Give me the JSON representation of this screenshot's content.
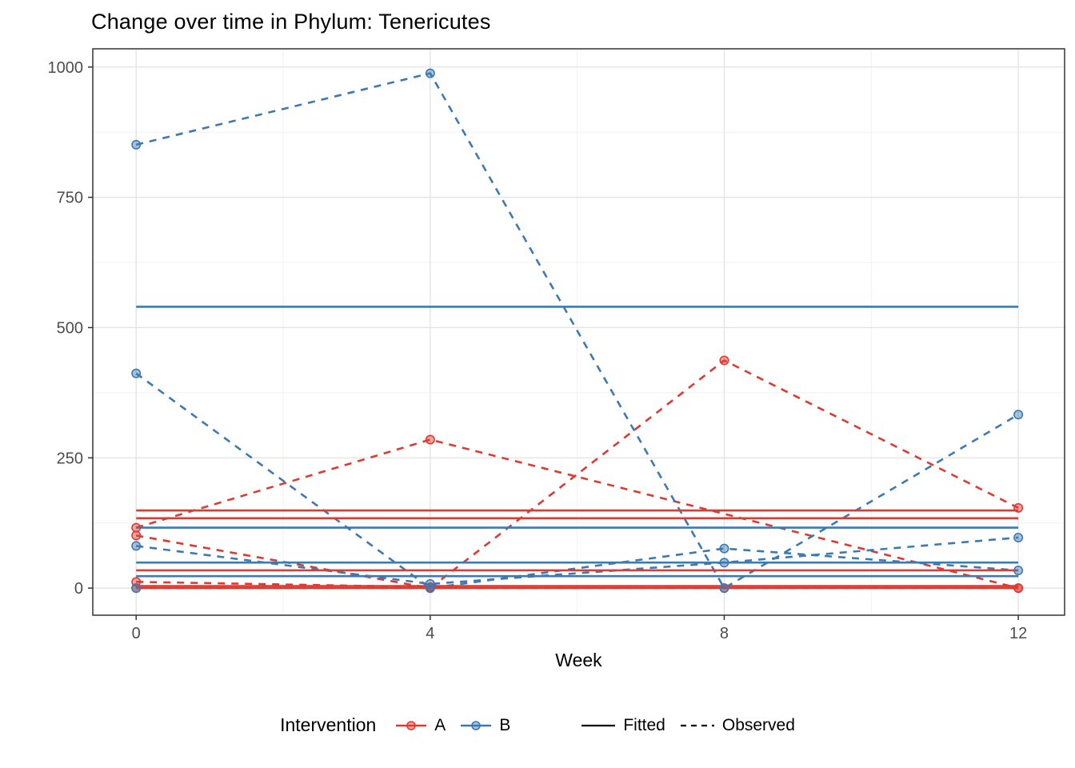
{
  "title": "Change over time in Phylum: Tenericutes",
  "chart_data": {
    "type": "line",
    "title": "Change over time in Phylum: Tenericutes",
    "xlabel": "Week",
    "ylabel": "",
    "x_ticks": [
      0,
      4,
      8,
      12
    ],
    "y_ticks": [
      0,
      250,
      500,
      750,
      1000
    ],
    "x_minor": [
      2,
      6,
      10
    ],
    "y_minor": [
      125,
      375,
      625,
      875
    ],
    "xlim": [
      -0.59,
      12.63
    ],
    "ylim": [
      -52,
      1035
    ],
    "grid": true,
    "legend_position": "bottom",
    "colors": {
      "A": "#DD3B32",
      "B": "#3D79B2",
      "linetype_key": "#000000"
    },
    "series": {
      "fitted": [
        {
          "group": "A",
          "value": 149
        },
        {
          "group": "A",
          "value": 134
        },
        {
          "group": "A",
          "value": 34
        },
        {
          "group": "A",
          "value": 4
        },
        {
          "group": "A",
          "value": 0
        },
        {
          "group": "B",
          "value": 540
        },
        {
          "group": "B",
          "value": 116
        },
        {
          "group": "B",
          "value": 49
        },
        {
          "group": "B",
          "value": 23
        }
      ],
      "observed": [
        {
          "group": "A",
          "points": [
            [
              0,
              116
            ],
            [
              4,
              285
            ],
            [
              12,
              0
            ]
          ]
        },
        {
          "group": "A",
          "points": [
            [
              0,
              101
            ],
            [
              4,
              0
            ],
            [
              8,
              437
            ],
            [
              12,
              154
            ]
          ]
        },
        {
          "group": "A",
          "points": [
            [
              0,
              12
            ],
            [
              4,
              2
            ]
          ]
        },
        {
          "group": "A",
          "points": [
            [
              0,
              0
            ],
            [
              4,
              0
            ],
            [
              8,
              0
            ],
            [
              12,
              0
            ]
          ]
        },
        {
          "group": "B",
          "points": [
            [
              0,
              851
            ],
            [
              4,
              988
            ],
            [
              8,
              0
            ],
            [
              12,
              333
            ]
          ]
        },
        {
          "group": "B",
          "points": [
            [
              0,
              412
            ],
            [
              4,
              0
            ],
            [
              8,
              76
            ],
            [
              12,
              34
            ]
          ]
        },
        {
          "group": "B",
          "points": [
            [
              0,
              81
            ],
            [
              4,
              8
            ],
            [
              8,
              49
            ],
            [
              12,
              97
            ]
          ]
        },
        {
          "group": "B",
          "points": [
            [
              0,
              0
            ]
          ]
        }
      ]
    }
  },
  "legend": {
    "title": "Intervention",
    "items": [
      {
        "label": "A",
        "color": "#DD3B32"
      },
      {
        "label": "B",
        "color": "#3D79B2"
      }
    ],
    "linetype_items": [
      {
        "label": "Fitted",
        "style": "solid"
      },
      {
        "label": "Observed",
        "style": "dashed"
      }
    ]
  }
}
